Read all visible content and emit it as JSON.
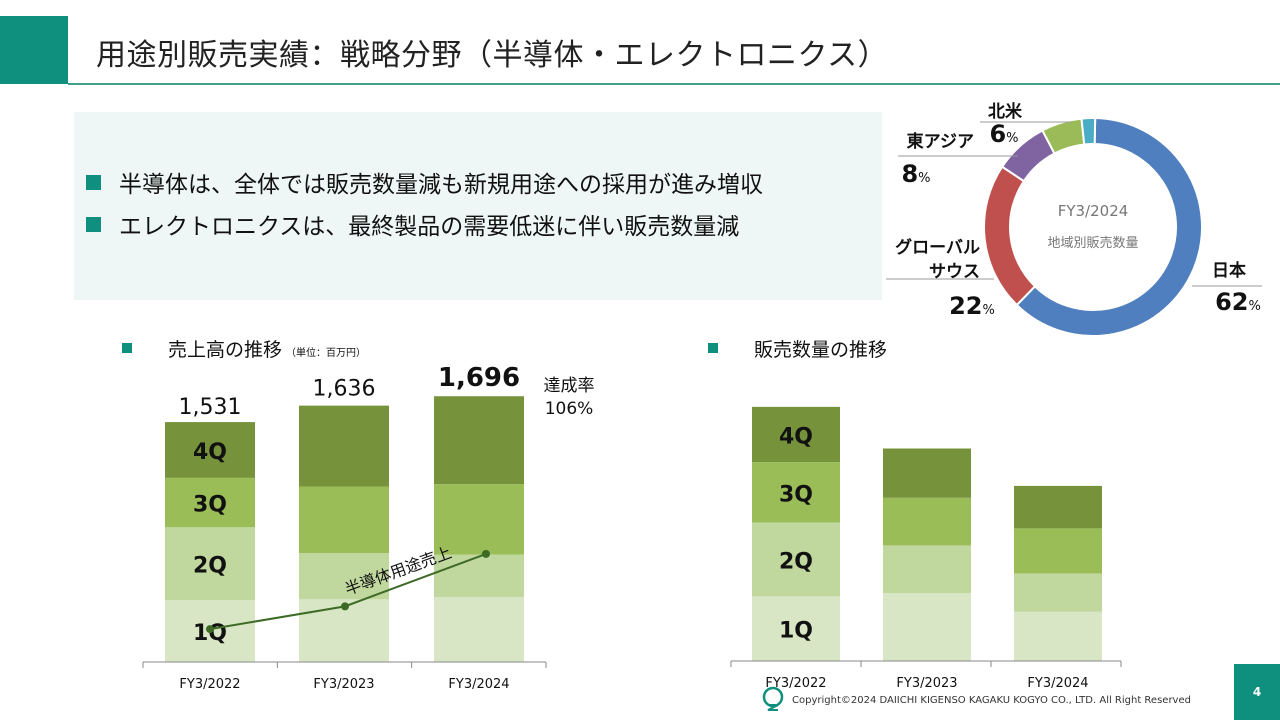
{
  "header": {
    "title": "用途別販売実績：戦略分野（半導体・エレクトロニクス）"
  },
  "summary": {
    "bullets": [
      "半導体は、全体では販売数量減も新規用途への採用が進み増収",
      "エレクトロニクスは、最終製品の需要低迷に伴い販売数量減"
    ]
  },
  "footer": {
    "copyright": "Copyright©2024 DAIICHI KIGENSO KAGAKU KOGYO CO., LTD. All Right Reserved",
    "page_number": "4",
    "logo_icon": "company-logo-icon"
  },
  "colors": {
    "accent": "#0f8f7e",
    "q1": "#d9e6c5",
    "q2": "#c0d79e",
    "q3": "#9bbd58",
    "q4": "#76933c",
    "line": "#3d6b26"
  },
  "chart_data": [
    {
      "type": "pie",
      "center_label": "FY3/2024",
      "center_sublabel": "地域別販売数量",
      "slices": [
        {
          "name": "日本",
          "value": 62,
          "value_label": "62",
          "unit": "%",
          "color": "#4f7fbf"
        },
        {
          "name": "グローバルサウス",
          "label_lines": [
            "グローバル",
            "サウス"
          ],
          "value": 22,
          "value_label": "22",
          "unit": "%",
          "color": "#c0504d"
        },
        {
          "name": "東アジア",
          "value": 8,
          "value_label": "8",
          "unit": "%",
          "color": "#8064a2"
        },
        {
          "name": "北米",
          "value": 6,
          "value_label": "6",
          "unit": "%",
          "color": "#9bbb59"
        },
        {
          "name": "",
          "value": 2,
          "value_label": "",
          "unit": "",
          "color": "#4bacc6"
        }
      ]
    },
    {
      "type": "bar",
      "stacked": true,
      "title": "売上高の推移",
      "unit_label": "（単位：百万円）",
      "categories": [
        "FY3/2022",
        "FY3/2023",
        "FY3/2024"
      ],
      "totals": [
        1531,
        1636,
        1696
      ],
      "total_labels": [
        "1,531",
        "1,636",
        "1,696"
      ],
      "series": [
        {
          "name": "1Q",
          "values": [
            395,
            400,
            415
          ]
        },
        {
          "name": "2Q",
          "values": [
            465,
            295,
            270
          ]
        },
        {
          "name": "3Q",
          "values": [
            315,
            425,
            450
          ]
        },
        {
          "name": "4Q",
          "values": [
            356,
            516,
            561
          ]
        }
      ],
      "annotation": {
        "label": "達成率",
        "value": "106%"
      },
      "line": {
        "name": "半導体用途売上",
        "values": [
          210,
          355,
          690
        ]
      },
      "ylim": [
        0,
        1800
      ]
    },
    {
      "type": "bar",
      "stacked": true,
      "title": "販売数量の推移",
      "categories": [
        "FY3/2022",
        "FY3/2023",
        "FY3/2024"
      ],
      "series": [
        {
          "name": "1Q",
          "values": [
            76,
            80,
            58
          ]
        },
        {
          "name": "2Q",
          "values": [
            87,
            56,
            45
          ]
        },
        {
          "name": "3Q",
          "values": [
            71,
            56,
            53
          ]
        },
        {
          "name": "4Q",
          "values": [
            65,
            58,
            50
          ]
        }
      ],
      "ylim": [
        0,
        300
      ]
    }
  ]
}
